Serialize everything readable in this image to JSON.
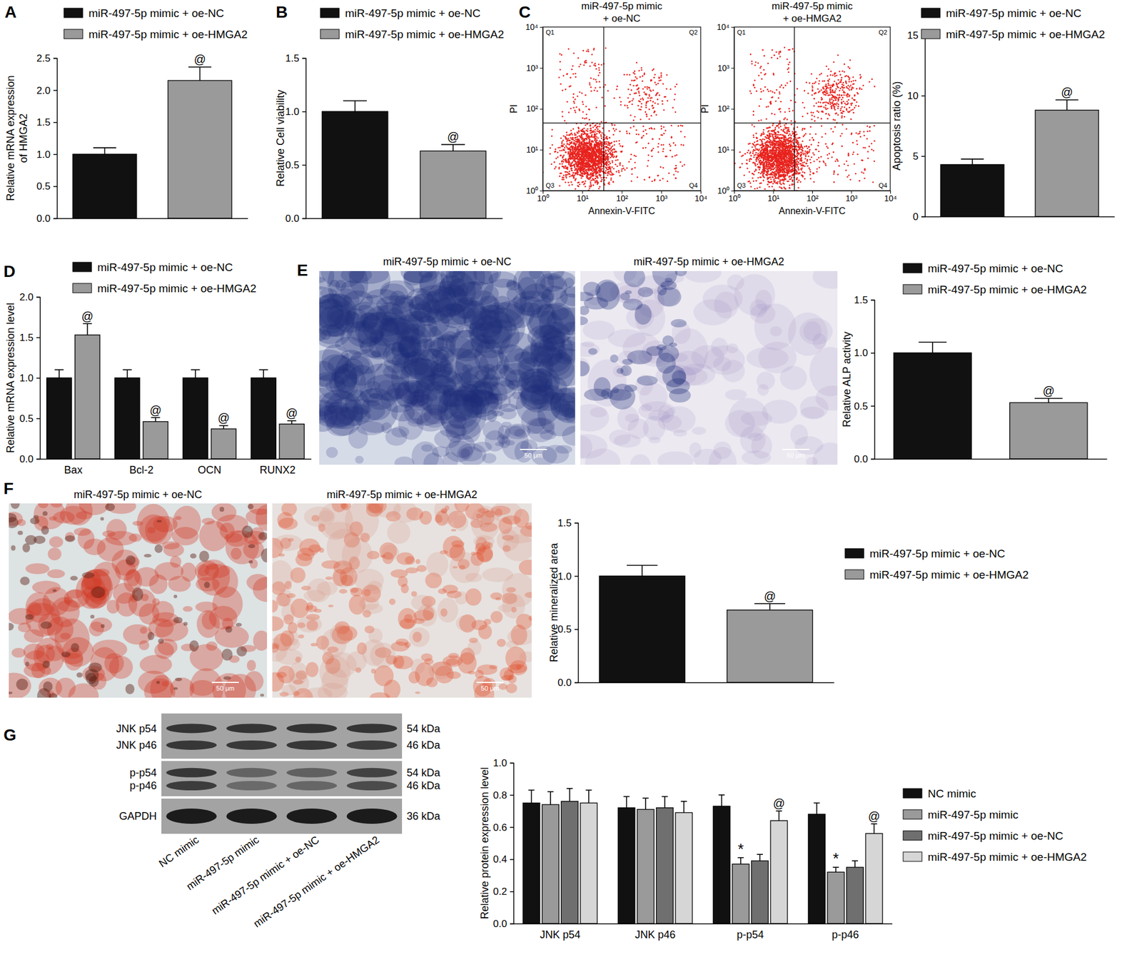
{
  "chart_data": [
    {
      "type": "bar",
      "panel_label": "A",
      "y_label": [
        "Relative mRNA expression",
        "of HMGA2"
      ],
      "categories": [
        null
      ],
      "series": [
        {
          "name": "miR-497-5p mimic + oe-NC",
          "color": "#111111",
          "values": [
            1.0
          ],
          "errors": [
            0.1
          ]
        },
        {
          "name": "miR-497-5p mimic + oe-HMGA2",
          "color": "#9a9a9a",
          "values": [
            2.15
          ],
          "errors": [
            0.21
          ]
        }
      ],
      "ylim": [
        0,
        2.5
      ],
      "yticks": [
        {
          "value": 0,
          "label": "0.0"
        },
        {
          "value": 0.5,
          "label": "0.5"
        },
        {
          "value": 1,
          "label": "1.0"
        },
        {
          "value": 1.5,
          "label": "1.5"
        },
        {
          "value": 2,
          "label": "2.0"
        },
        {
          "value": 2.5,
          "label": "2.5"
        }
      ],
      "legend": "top",
      "annotations": [
        {
          "series": 1,
          "index": 0,
          "text": "@"
        }
      ]
    },
    {
      "type": "bar",
      "panel_label": "B",
      "y_label": "Relative Cell viability",
      "categories": [
        null
      ],
      "series": [
        {
          "name": "miR-497-5p mimic + oe-NC",
          "color": "#111111",
          "values": [
            1.0
          ],
          "errors": [
            0.1
          ]
        },
        {
          "name": "miR-497-5p mimic + oe-HMGA2",
          "color": "#9a9a9a",
          "values": [
            0.63
          ],
          "errors": [
            0.06
          ]
        }
      ],
      "ylim": [
        0,
        1.5
      ],
      "yticks": [
        {
          "value": 0,
          "label": "0.0"
        },
        {
          "value": 0.5,
          "label": "0.5"
        },
        {
          "value": 1,
          "label": "1.0"
        },
        {
          "value": 1.5,
          "label": "1.5"
        }
      ],
      "legend": "top",
      "annotations": [
        {
          "series": 1,
          "index": 0,
          "text": "@"
        }
      ]
    },
    {
      "type": "flow_cytometry",
      "panel_label": "C",
      "title": [
        "miR-497-5p mimic",
        "+ oe-NC"
      ],
      "x_label": "Annexin-V-FITC",
      "y_label": "PI",
      "log": true,
      "xlim": [
        1,
        10000
      ],
      "ylim": [
        1,
        10000
      ],
      "xticks": [
        {
          "value": 1,
          "label": "10⁰"
        },
        {
          "value": 10,
          "label": "10¹"
        },
        {
          "value": 100,
          "label": "10²"
        },
        {
          "value": 1000,
          "label": "10³"
        },
        {
          "value": 10000,
          "label": "10⁴"
        }
      ],
      "yticks": [
        {
          "value": 1,
          "label": "10⁰"
        },
        {
          "value": 10,
          "label": "10¹"
        },
        {
          "value": 100,
          "label": "10²"
        },
        {
          "value": 1000,
          "label": "10³"
        },
        {
          "value": 10000,
          "label": "10⁴"
        }
      ],
      "gate": {
        "x": 35,
        "y": 45
      },
      "quadrant_labels": [
        "Q1",
        "Q2",
        "Q3",
        "Q4"
      ]
    },
    {
      "type": "flow_cytometry",
      "title": [
        "miR-497-5p mimic",
        "+ oe-HMGA2"
      ],
      "x_label": "Annexin-V-FITC",
      "y_label": "PI",
      "log": true,
      "xlim": [
        1,
        10000
      ],
      "ylim": [
        1,
        10000
      ],
      "xticks": [
        {
          "value": 1,
          "label": "10⁰"
        },
        {
          "value": 10,
          "label": "10¹"
        },
        {
          "value": 100,
          "label": "10²"
        },
        {
          "value": 1000,
          "label": "10³"
        },
        {
          "value": 10000,
          "label": "10⁴"
        }
      ],
      "yticks": [
        {
          "value": 1,
          "label": "10⁰"
        },
        {
          "value": 10,
          "label": "10¹"
        },
        {
          "value": 100,
          "label": "10²"
        },
        {
          "value": 1000,
          "label": "10³"
        },
        {
          "value": 10000,
          "label": "10⁴"
        }
      ],
      "gate": {
        "x": 35,
        "y": 45
      },
      "quadrant_labels": [
        "Q1",
        "Q2",
        "Q3",
        "Q4"
      ]
    },
    {
      "type": "bar",
      "y_label": "Apoptosis ratio (%)",
      "categories": [
        null
      ],
      "series": [
        {
          "name": "miR-497-5p mimic + oe-NC",
          "color": "#111111",
          "values": [
            4.3
          ],
          "errors": [
            0.45
          ]
        },
        {
          "name": "miR-497-5p mimic + oe-HMGA2",
          "color": "#9a9a9a",
          "values": [
            8.8
          ],
          "errors": [
            0.85
          ]
        }
      ],
      "ylim": [
        0,
        15
      ],
      "yticks": [
        0,
        5,
        10,
        15
      ],
      "legend": "top",
      "annotations": [
        {
          "series": 1,
          "index": 0,
          "text": "@"
        }
      ]
    },
    {
      "type": "bar",
      "panel_label": "D",
      "y_label": "Relative mRNA expression level",
      "categories": [
        "Bax",
        "Bcl-2",
        "OCN",
        "RUNX2"
      ],
      "series": [
        {
          "name": "miR-497-5p mimic + oe-NC",
          "color": "#111111",
          "values": [
            1.0,
            1.0,
            1.0,
            1.0
          ],
          "errors": [
            0.1,
            0.1,
            0.1,
            0.1
          ]
        },
        {
          "name": "miR-497-5p mimic + oe-HMGA2",
          "color": "#9a9a9a",
          "values": [
            1.53,
            0.46,
            0.37,
            0.43
          ],
          "errors": [
            0.14,
            0.05,
            0.04,
            0.04
          ]
        }
      ],
      "ylim": [
        0,
        2
      ],
      "yticks": [
        {
          "value": 0,
          "label": "0.0"
        },
        {
          "value": 0.5,
          "label": "0.5"
        },
        {
          "value": 1,
          "label": "1.0"
        },
        {
          "value": 1.5,
          "label": "1.5"
        },
        {
          "value": 2,
          "label": "2.0"
        }
      ],
      "legend": "top",
      "annotations": [
        {
          "series": 1,
          "index": 0,
          "text": "@"
        },
        {
          "series": 1,
          "index": 1,
          "text": "@"
        },
        {
          "series": 1,
          "index": 2,
          "text": "@"
        },
        {
          "series": 1,
          "index": 3,
          "text": "@"
        }
      ]
    },
    {
      "type": "bar",
      "y_label": "Relative ALP activity",
      "categories": [
        null
      ],
      "series": [
        {
          "name": "miR-497-5p mimic + oe-NC",
          "color": "#111111",
          "values": [
            1.0
          ],
          "errors": [
            0.1
          ]
        },
        {
          "name": "miR-497-5p mimic + oe-HMGA2",
          "color": "#9a9a9a",
          "values": [
            0.53
          ],
          "errors": [
            0.04
          ]
        }
      ],
      "ylim": [
        0,
        1.5
      ],
      "yticks": [
        {
          "value": 0,
          "label": "0.0"
        },
        {
          "value": 0.5,
          "label": "0.5"
        },
        {
          "value": 1,
          "label": "1.0"
        },
        {
          "value": 1.5,
          "label": "1.5"
        }
      ],
      "legend": "top",
      "annotations": [
        {
          "series": 1,
          "index": 0,
          "text": "@"
        }
      ]
    },
    {
      "type": "bar",
      "y_label": "Relative mineralized area",
      "categories": [
        null
      ],
      "series": [
        {
          "name": "miR-497-5p mimic + oe-NC",
          "color": "#111111",
          "values": [
            1.0
          ],
          "errors": [
            0.1
          ]
        },
        {
          "name": "miR-497-5p mimic + oe-HMGA2",
          "color": "#9a9a9a",
          "values": [
            0.68
          ],
          "errors": [
            0.06
          ]
        }
      ],
      "ylim": [
        0,
        1.5
      ],
      "yticks": [
        {
          "value": 0,
          "label": "0.0"
        },
        {
          "value": 0.5,
          "label": "0.5"
        },
        {
          "value": 1,
          "label": "1.0"
        },
        {
          "value": 1.5,
          "label": "1.5"
        }
      ],
      "legend": "right",
      "annotations": [
        {
          "series": 1,
          "index": 0,
          "text": "@"
        }
      ]
    },
    {
      "type": "bar",
      "y_label": "Relative protein expression level",
      "categories": [
        "JNK p54",
        "JNK p46",
        "p-p54",
        "p-p46"
      ],
      "series": [
        {
          "name": "NC mimic",
          "color": "#111111",
          "values": [
            0.75,
            0.72,
            0.73,
            0.68
          ],
          "errors": [
            0.08,
            0.07,
            0.07,
            0.07
          ]
        },
        {
          "name": "miR-497-5p mimic",
          "color": "#9a9a9a",
          "values": [
            0.74,
            0.71,
            0.37,
            0.32
          ],
          "errors": [
            0.08,
            0.07,
            0.04,
            0.03
          ]
        },
        {
          "name": "miR-497-5p mimic + oe-NC",
          "color": "#6f6f6f",
          "values": [
            0.76,
            0.72,
            0.39,
            0.35
          ],
          "errors": [
            0.08,
            0.07,
            0.04,
            0.04
          ]
        },
        {
          "name": "miR-497-5p mimic + oe-HMGA2",
          "color": "#d6d6d6",
          "values": [
            0.75,
            0.69,
            0.64,
            0.56
          ],
          "errors": [
            0.08,
            0.07,
            0.06,
            0.06
          ]
        }
      ],
      "ylim": [
        0,
        1
      ],
      "yticks": [
        {
          "value": 0,
          "label": "0.0"
        },
        {
          "value": 0.2,
          "label": "0.2"
        },
        {
          "value": 0.4,
          "label": "0.4"
        },
        {
          "value": 0.6,
          "label": "0.6"
        },
        {
          "value": 0.8,
          "label": "0.8"
        },
        {
          "value": 1,
          "label": "1.0"
        }
      ],
      "legend": "right",
      "annotations": [
        {
          "series": 1,
          "index": 2,
          "text": "*"
        },
        {
          "series": 1,
          "index": 3,
          "text": "*"
        },
        {
          "series": 3,
          "index": 2,
          "text": "@"
        },
        {
          "series": 3,
          "index": 3,
          "text": "@"
        }
      ]
    }
  ],
  "images": [
    {
      "panel_label": "E",
      "titles": [
        "miR-497-5p mimic + oe-NC",
        "miR-497-5p mimic + oe-HMGA2"
      ],
      "scale_bar": "50 μm"
    },
    {
      "panel_label": "F",
      "titles": [
        "miR-497-5p mimic + oe-NC",
        "miR-497-5p mimic + oe-HMGA2"
      ],
      "scale_bar": "50 μm"
    }
  ],
  "blot": {
    "panel_label": "G",
    "strips": [
      {
        "rows": [
          {
            "label": "JNK p54",
            "size": "54 kDa"
          },
          {
            "label": "JNK p46",
            "size": "46 kDa"
          }
        ]
      },
      {
        "rows": [
          {
            "label": "p-p54",
            "size": "54 kDa"
          },
          {
            "label": "p-p46",
            "size": "46 kDa"
          }
        ]
      },
      {
        "rows": [
          {
            "label": "GAPDH",
            "size": "36 kDa"
          }
        ]
      }
    ],
    "lanes": [
      "NC mimic",
      "miR-497-5p mimic",
      "miR-497-5p mimic + oe-NC",
      "miR-497-5p mimic + oe-HMGA2"
    ]
  }
}
